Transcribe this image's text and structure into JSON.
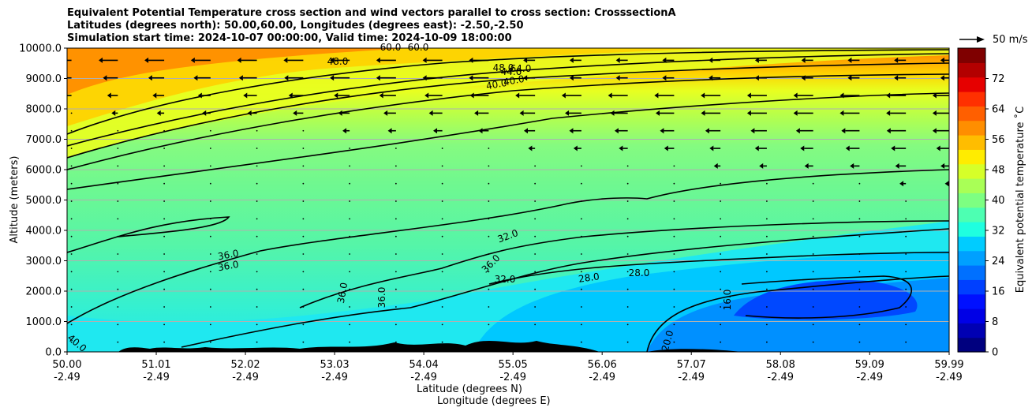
{
  "titles": [
    "Equivalent Potential Temperature cross section and wind vectors parallel to cross section: CrosssectionA",
    "Latitudes (degrees north): 50.00,60.00, Longitudes (degrees east): -2.50,-2.50",
    "Simulation start time: 2024-10-07 00:00:00, Valid time: 2024-10-09 18:00:00"
  ],
  "vector_key": "50 m/s",
  "colorbar_label": "Equivalent potential temperature ˚C",
  "chart_data": {
    "type": "heatmap",
    "subtype": "filled contour cross section with wind vectors",
    "xlabel": "Latitude (degrees N)",
    "xlabel2": "Longitude (degrees E)",
    "ylabel": "Altitude (meters)",
    "xlim": [
      50.0,
      59.99
    ],
    "ylim": [
      0,
      10000
    ],
    "grid": "horizontal",
    "x_ticks": [
      {
        "lat": "50.00",
        "lon": "-2.49",
        "value": 50.0
      },
      {
        "lat": "51.01",
        "lon": "-2.49",
        "value": 51.01
      },
      {
        "lat": "52.02",
        "lon": "-2.49",
        "value": 52.02
      },
      {
        "lat": "53.03",
        "lon": "-2.49",
        "value": 53.03
      },
      {
        "lat": "54.04",
        "lon": "-2.49",
        "value": 54.04
      },
      {
        "lat": "55.05",
        "lon": "-2.49",
        "value": 55.05
      },
      {
        "lat": "56.06",
        "lon": "-2.49",
        "value": 56.06
      },
      {
        "lat": "57.07",
        "lon": "-2.49",
        "value": 57.07
      },
      {
        "lat": "58.08",
        "lon": "-2.49",
        "value": 58.08
      },
      {
        "lat": "59.09",
        "lon": "-2.49",
        "value": 59.09
      },
      {
        "lat": "59.99",
        "lon": "-2.49",
        "value": 59.99
      }
    ],
    "y_ticks": [
      "0.0",
      "1000.0",
      "2000.0",
      "3000.0",
      "4000.0",
      "5000.0",
      "6000.0",
      "7000.0",
      "8000.0",
      "9000.0",
      "10000.0"
    ],
    "colorbar": {
      "range": [
        0,
        80
      ],
      "ticks": [
        "0",
        "8",
        "16",
        "24",
        "32",
        "40",
        "48",
        "56",
        "64",
        "72"
      ],
      "colors": [
        "#00007f",
        "#0000b3",
        "#0000e6",
        "#0010ff",
        "#0040ff",
        "#0070ff",
        "#00a0ff",
        "#00ccff",
        "#1fffe0",
        "#4dffb2",
        "#7dff82",
        "#a9ff56",
        "#d6ff29",
        "#ffec00",
        "#ffbd00",
        "#ff8e00",
        "#ff5f00",
        "#ff3000",
        "#e60000",
        "#b30000",
        "#7f0000"
      ]
    },
    "contour_labels": [
      "32.0",
      "36.0",
      "40.0",
      "44.0",
      "48.0",
      "56.0",
      "60.0",
      "64.0",
      "28.0",
      "16.0",
      "20.0"
    ]
  }
}
